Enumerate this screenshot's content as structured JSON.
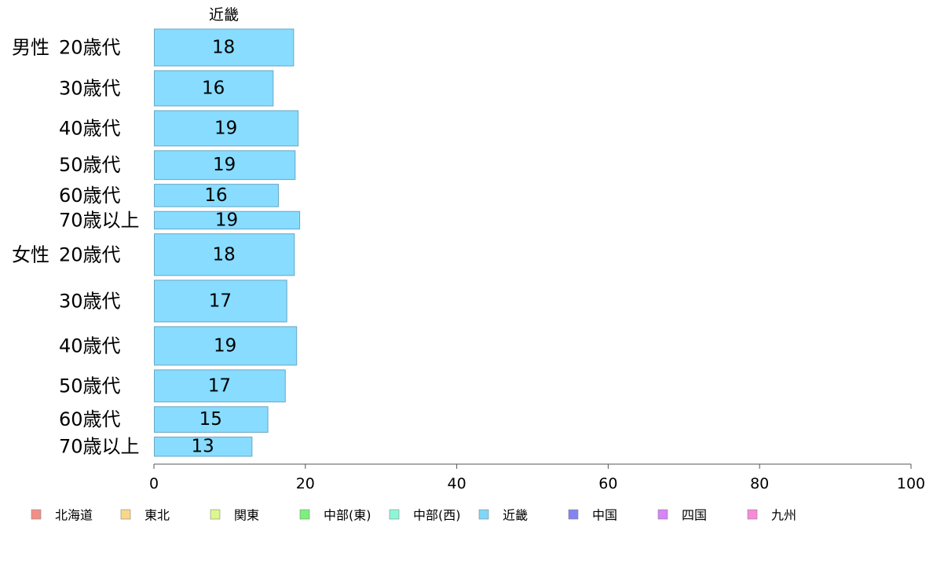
{
  "chart_data": {
    "type": "bar",
    "orientation": "horizontal",
    "series_label": "近畿",
    "rows": [
      {
        "group": "男性",
        "category": "20歳代",
        "value": 18.4
      },
      {
        "group": "",
        "category": "30歳代",
        "value": 15.7
      },
      {
        "group": "",
        "category": "40歳代",
        "value": 19.0
      },
      {
        "group": "",
        "category": "50歳代",
        "value": 18.6
      },
      {
        "group": "",
        "category": "60歳代",
        "value": 16.4
      },
      {
        "group": "",
        "category": "70歳以上",
        "value": 19.2
      },
      {
        "group": "女性",
        "category": "20歳代",
        "value": 18.5
      },
      {
        "group": "",
        "category": "30歳代",
        "value": 17.5
      },
      {
        "group": "",
        "category": "40歳代",
        "value": 18.8
      },
      {
        "group": "",
        "category": "50歳代",
        "value": 17.3
      },
      {
        "group": "",
        "category": "60歳代",
        "value": 15.0
      },
      {
        "group": "",
        "category": "70歳以上",
        "value": 12.9
      }
    ],
    "data_labels": [
      "18",
      "16",
      "19",
      "19",
      "16",
      "19",
      "18",
      "17",
      "19",
      "17",
      "15",
      "13"
    ],
    "row_weights": [
      46,
      44,
      44,
      36,
      28,
      22,
      52,
      52,
      48,
      40,
      32,
      24
    ],
    "xlim": [
      0,
      100
    ],
    "xticks": [
      0,
      20,
      40,
      60,
      80,
      100
    ],
    "bar_color": "#87dcff",
    "bar_stroke": "#6aa6c4",
    "legend": {
      "placement": "bottom",
      "items": [
        {
          "label": "北海道",
          "color": "#f28e86"
        },
        {
          "label": "東北",
          "color": "#f8d787"
        },
        {
          "label": "関東",
          "color": "#dcf78d"
        },
        {
          "label": "中部(東)",
          "color": "#7cf07c"
        },
        {
          "label": "中部(西)",
          "color": "#8cf7d6"
        },
        {
          "label": "近畿",
          "color": "#7fd6f7"
        },
        {
          "label": "中国",
          "color": "#8383f2"
        },
        {
          "label": "四国",
          "color": "#d585f5"
        },
        {
          "label": "九州",
          "color": "#f78ad9"
        }
      ]
    }
  }
}
